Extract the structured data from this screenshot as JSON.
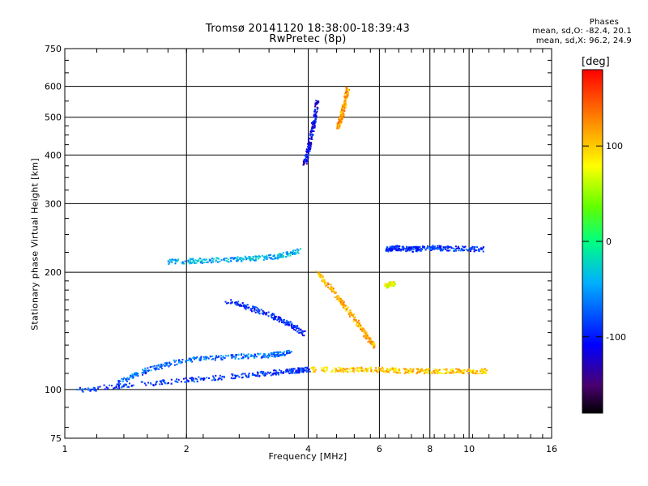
{
  "title_line1": "Tromsø 20141120 18:38:00-18:39:43",
  "title_line2": "RwPretec (8p)",
  "stats": {
    "header": "Phases",
    "o_mode": "mean, sd,O: -82.4, 20.1",
    "x_mode": "mean, sd,X:  96.2, 24.9"
  },
  "colorbar": {
    "unit": "[deg]",
    "ticks": [
      {
        "label": "100",
        "value": 100
      },
      {
        "label": "0",
        "value": 0
      },
      {
        "label": "-100",
        "value": -100
      }
    ],
    "range": [
      -180,
      180
    ],
    "colormap": "rainbow"
  },
  "chart_data": {
    "type": "scatter",
    "title": "Tromsø 20141120 18:38:00-18:39:43",
    "subtitle": "RwPretec (8p)",
    "xlabel": "Frequency [MHz]",
    "ylabel": "Stationary phase Virtual Height [km]",
    "xscale": "log",
    "yscale": "log",
    "xlim": [
      1,
      16
    ],
    "ylim": [
      75,
      750
    ],
    "xticks": [
      1,
      2,
      4,
      6,
      8,
      10,
      16
    ],
    "xtick_labels": [
      "1",
      "2",
      "4",
      "6",
      "8",
      "10",
      "16"
    ],
    "yticks": [
      75,
      100,
      200,
      300,
      400,
      500,
      600,
      750
    ],
    "ytick_labels": [
      "75",
      "100",
      "200",
      "300",
      "400",
      "500",
      "600",
      "750"
    ],
    "grid": true,
    "color_variable": "phase [deg]",
    "traces": [
      {
        "x": [
          1.05,
          1.6,
          2.2,
          3.0,
          3.6,
          4.0
        ],
        "y": [
          100,
          104,
          107,
          110,
          112,
          113
        ],
        "phase": -90
      },
      {
        "x": [
          4.0,
          5.0,
          6.0,
          7.0,
          8.0,
          9.5,
          11.0
        ],
        "y": [
          113,
          113,
          113,
          112,
          112,
          112,
          112
        ],
        "phase": 100
      },
      {
        "x": [
          1.35,
          1.6,
          2.0,
          2.6,
          3.2,
          3.6
        ],
        "y": [
          105,
          113,
          120,
          122,
          123,
          125
        ],
        "phase": -70
      },
      {
        "x": [
          1.8,
          2.2,
          2.7,
          3.3,
          3.8
        ],
        "y": [
          214,
          215,
          217,
          220,
          228
        ],
        "phase": -40
      },
      {
        "x": [
          2.5,
          3.0,
          3.5,
          3.9
        ],
        "y": [
          170,
          160,
          150,
          140
        ],
        "phase": -95
      },
      {
        "x": [
          3.9,
          4.0,
          4.1,
          4.2
        ],
        "y": [
          380,
          420,
          480,
          560
        ],
        "phase": -110
      },
      {
        "x": [
          4.7,
          4.8,
          4.9,
          5.0
        ],
        "y": [
          470,
          500,
          540,
          600
        ],
        "phase": 120
      },
      {
        "x": [
          4.2,
          4.6,
          5.0,
          5.5,
          5.8
        ],
        "y": [
          200,
          180,
          160,
          140,
          130
        ],
        "phase": 110
      },
      {
        "x": [
          6.2,
          6.6,
          7.2,
          8.0,
          9.0,
          10.8
        ],
        "y": [
          230,
          232,
          230,
          232,
          231,
          230
        ],
        "phase": -90
      },
      {
        "x": [
          6.2,
          6.5
        ],
        "y": [
          185,
          188
        ],
        "phase": 70
      }
    ]
  }
}
